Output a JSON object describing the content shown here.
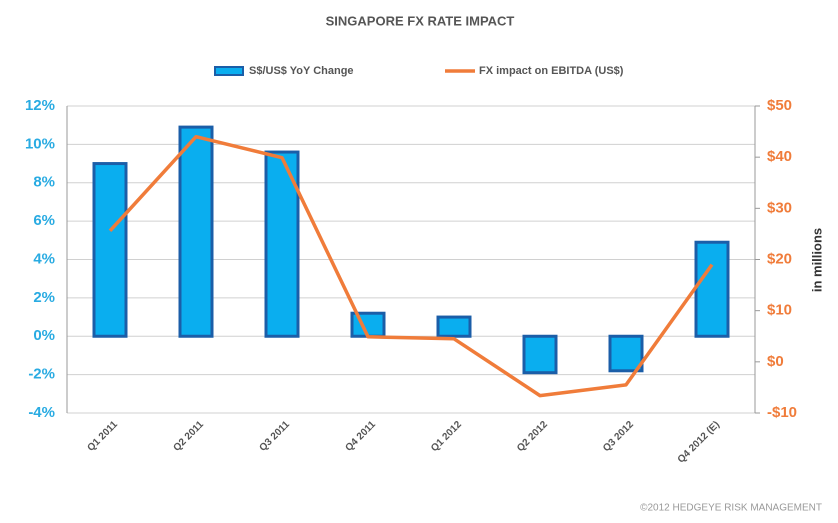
{
  "chart_data": {
    "type": "bar",
    "title": "SINGAPORE FX RATE IMPACT",
    "categories": [
      "Q1 2011",
      "Q2 2011",
      "Q3 2011",
      "Q4 2011",
      "Q1 2012",
      "Q2 2012",
      "Q3 2012",
      "Q4 2012 (E)"
    ],
    "series": [
      {
        "name": "S$/US$ YoY Change",
        "type": "bar",
        "color": "#0aaeef",
        "edge_color": "#1b5ea8",
        "values": [
          9.0,
          10.9,
          9.6,
          1.2,
          1.0,
          -1.9,
          -1.8,
          4.9
        ]
      },
      {
        "name": "FX impact on EBITDA (US$)",
        "type": "line",
        "axis": "y2",
        "color": "#f07c3a",
        "values": [
          25.6,
          44,
          39.9,
          4.9,
          4.5,
          -6.6,
          -4.5,
          19
        ]
      }
    ],
    "ylim": [
      -4,
      12
    ],
    "yticks": [
      {
        "value": -4,
        "label": "-4%"
      },
      {
        "value": -2,
        "label": "-2%"
      },
      {
        "value": 0,
        "label": "0%"
      },
      {
        "value": 2,
        "label": "2%"
      },
      {
        "value": 4,
        "label": "4%"
      },
      {
        "value": 6,
        "label": "6%"
      },
      {
        "value": 8,
        "label": "8%"
      },
      {
        "value": 10,
        "label": "10%"
      },
      {
        "value": 12,
        "label": "12%"
      }
    ],
    "y2lim": [
      -10,
      50
    ],
    "y2ticks": [
      {
        "value": -10,
        "label": "-$10"
      },
      {
        "value": 0,
        "label": "$0"
      },
      {
        "value": 10,
        "label": "$10"
      },
      {
        "value": 20,
        "label": "$20"
      },
      {
        "value": 30,
        "label": "$30"
      },
      {
        "value": 40,
        "label": "$40"
      },
      {
        "value": 50,
        "label": "$50"
      }
    ],
    "y2label": "in millions",
    "grid": true,
    "legend": "top",
    "footer": "©2012 HEDGEYE RISK MANAGEMENT"
  }
}
